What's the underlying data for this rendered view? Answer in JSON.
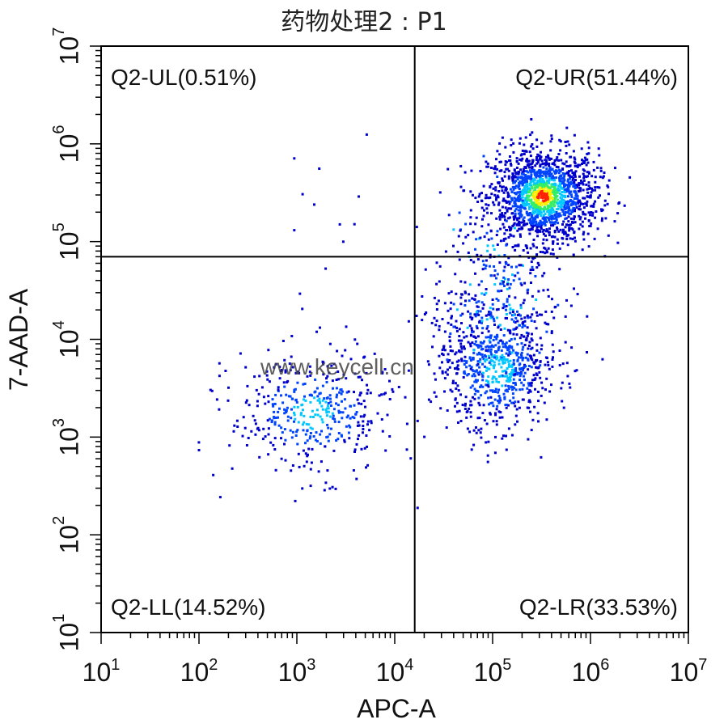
{
  "chart_data": {
    "type": "scatter",
    "title": "药物处理2 : P1",
    "xlabel": "APC-A",
    "ylabel": "7-AAD-A",
    "x_scale": "log10",
    "y_scale": "log10",
    "xlim": [
      10,
      10000000
    ],
    "ylim": [
      10,
      10000000
    ],
    "x_tick_exponents": [
      1,
      2,
      3,
      4,
      5,
      6,
      7
    ],
    "y_tick_exponents": [
      1,
      2,
      3,
      4,
      5,
      6,
      7
    ],
    "tick_base": "10",
    "gate": {
      "x_threshold": 16000,
      "y_threshold": 70000
    },
    "quadrants": [
      {
        "name": "Q2-UL",
        "label": "Q2-UL(0.51%)",
        "percent": 0.51,
        "position": "top-left"
      },
      {
        "name": "Q2-UR",
        "label": "Q2-UR(51.44%)",
        "percent": 51.44,
        "position": "top-right"
      },
      {
        "name": "Q2-LL",
        "label": "Q2-LL(14.52%)",
        "percent": 14.52,
        "position": "bottom-left"
      },
      {
        "name": "Q2-LR",
        "label": "Q2-LR(33.53%)",
        "percent": 33.53,
        "position": "bottom-right"
      }
    ],
    "populations": [
      {
        "quadrant": "Q2-UR",
        "center": [
          320000,
          300000
        ],
        "count": 1500
      },
      {
        "quadrant": "Q2-LR",
        "center": [
          110000,
          5000
        ],
        "count": 1000
      },
      {
        "quadrant": "Q2-LL",
        "center": [
          1400,
          1800
        ],
        "count": 430
      },
      {
        "quadrant": "Q2-UL",
        "center": [
          3000,
          200000
        ],
        "count": 15
      }
    ],
    "density_colors": [
      "#0000cc",
      "#0044ff",
      "#00c8ff",
      "#33ee66",
      "#ffee00",
      "#ff2200"
    ],
    "watermark": "www.keycell.cn",
    "grid": false
  }
}
